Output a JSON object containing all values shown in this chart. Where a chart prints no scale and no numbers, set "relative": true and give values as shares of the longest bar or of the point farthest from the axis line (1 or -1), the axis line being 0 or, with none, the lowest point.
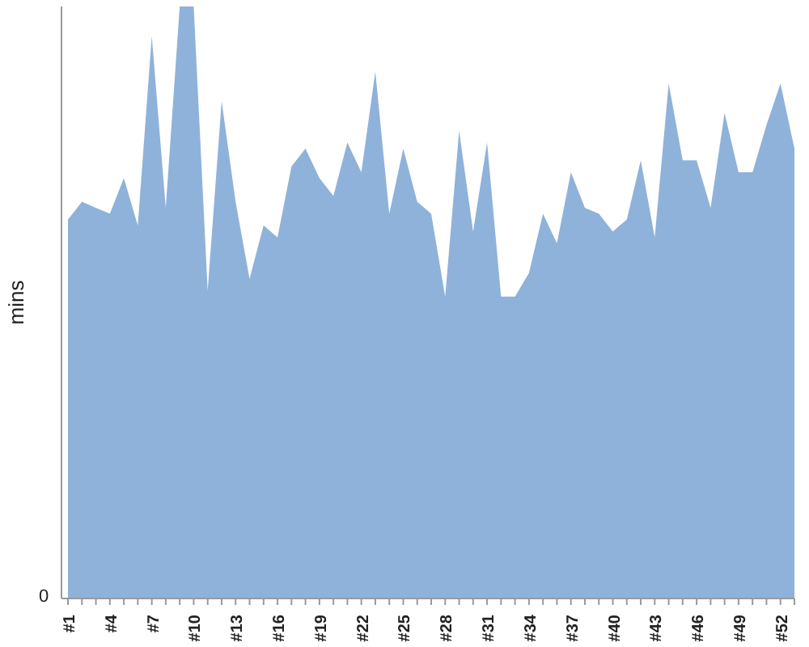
{
  "chart_data": {
    "type": "area",
    "ylabel": "mins",
    "relative": true,
    "annotations": [
      "0"
    ],
    "grid": false,
    "legend": false,
    "categories": [
      "#1",
      null,
      null,
      "#4",
      null,
      null,
      "#7",
      null,
      null,
      "#10",
      null,
      null,
      "#13",
      null,
      null,
      "#16",
      null,
      null,
      "#19",
      null,
      null,
      "#22",
      null,
      null,
      "#25",
      null,
      null,
      "#28",
      null,
      null,
      "#31",
      null,
      null,
      "#34",
      null,
      null,
      "#37",
      null,
      null,
      "#40",
      null,
      null,
      "#43",
      null,
      null,
      "#46",
      null,
      null,
      "#49",
      null,
      null,
      "#52",
      null
    ],
    "series": [
      {
        "color": "#8fb2da",
        "values": [
          0.64,
          0.67,
          0.66,
          0.65,
          0.71,
          0.63,
          0.95,
          0.66,
          1,
          1,
          0.52,
          0.84,
          0.67,
          0.54,
          0.63,
          0.61,
          0.73,
          0.76,
          0.71,
          0.68,
          0.77,
          0.72,
          0.89,
          0.65,
          0.76,
          0.67,
          0.65,
          0.51,
          0.79,
          0.62,
          0.77,
          0.51,
          0.51,
          0.55,
          0.65,
          0.6,
          0.72,
          0.66,
          0.65,
          0.62,
          0.64,
          0.74,
          0.61,
          0.87,
          0.74,
          0.74,
          0.66,
          0.82,
          0.72,
          0.72,
          0.8,
          0.87,
          0.76
        ]
      }
    ]
  }
}
